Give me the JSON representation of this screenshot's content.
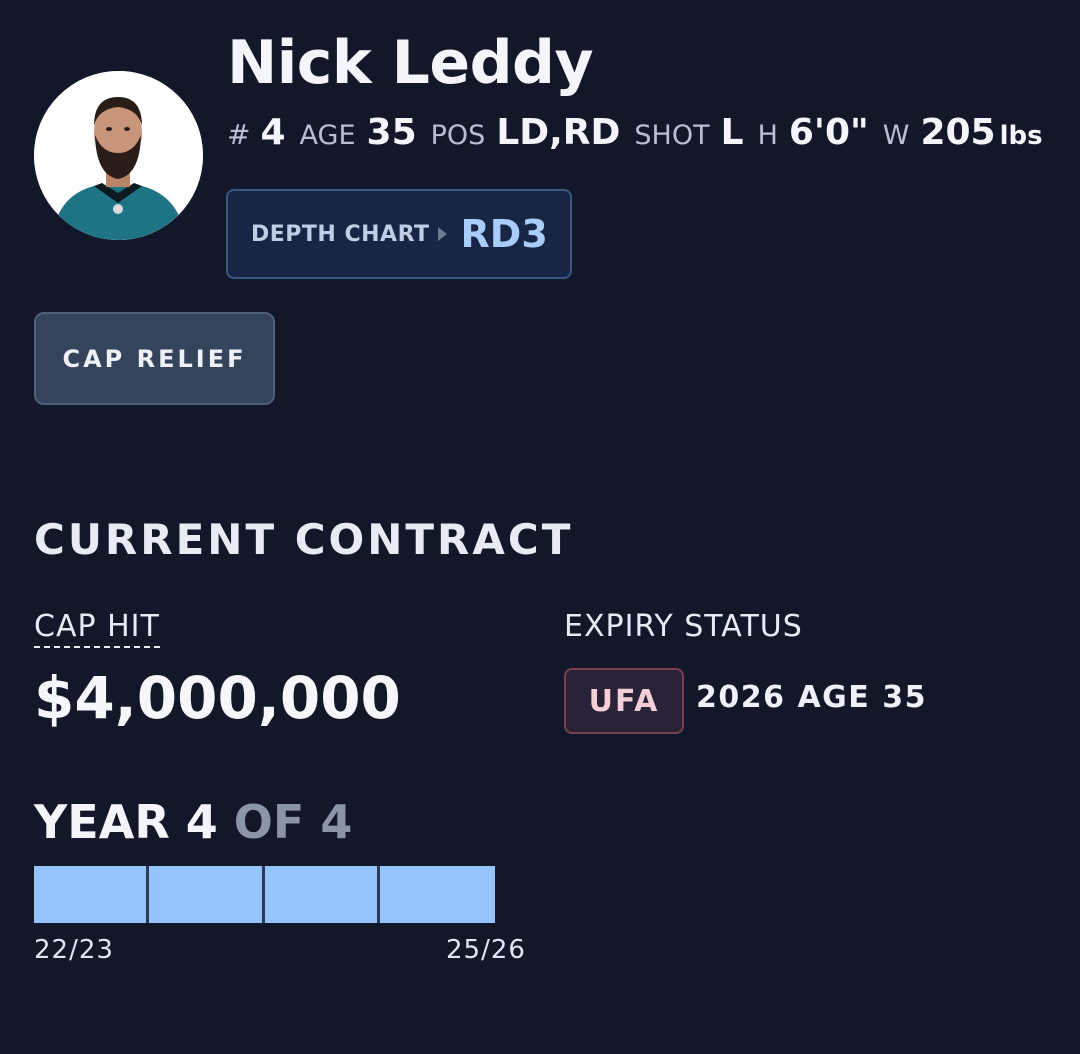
{
  "player": {
    "name": "Nick Leddy",
    "avatar_icon": "player-headshot",
    "bio": {
      "number_label": "#",
      "number": "4",
      "age_label": "AGE",
      "age": "35",
      "pos_label": "POS",
      "pos": "LD,RD",
      "shot_label": "SHOT",
      "shot": "L",
      "height_label": "H",
      "height": "6'0\"",
      "weight_label": "W",
      "weight": "205",
      "weight_unit": "lbs"
    }
  },
  "depth_chart": {
    "label": "DEPTH CHART",
    "value": "RD3"
  },
  "cap_relief_button": "CAP RELIEF",
  "contract": {
    "title": "CURRENT CONTRACT",
    "cap_hit_label": "CAP HIT",
    "cap_hit_value": "$4,000,000",
    "expiry_label": "EXPIRY STATUS",
    "expiry_badge": "UFA",
    "expiry_detail": "2026 AGE 35",
    "year_current_text": "YEAR 4",
    "year_total_text": "OF 4",
    "years_completed": 4,
    "years_total": 4,
    "season_start": "22/23",
    "season_end": "25/26"
  },
  "colors": {
    "background": "#12172a",
    "progress_fill": "#94c4fb",
    "depth_value": "#a8cdfb",
    "ufa_text": "#f5cfd8"
  }
}
